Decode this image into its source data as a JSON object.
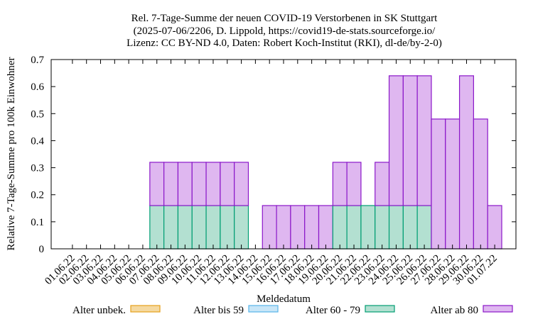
{
  "chart_data": {
    "type": "bar",
    "stacked": true,
    "title_lines": [
      "Rel. 7-Tage-Summe der neuen COVID-19 Verstorbenen in SK Stuttgart",
      "(2025-07-06/2206, D. Lippold, https://covid19-de-stats.sourceforge.io/",
      "Lizenz: CC BY-ND 4.0, Daten: Robert Koch-Institut (RKI), dl-de/by-2-0)"
    ],
    "xlabel": "Meldedatum",
    "ylabel": "Relative 7-Tage-Summe pro 100k Einwohner",
    "ylim": [
      0,
      0.7
    ],
    "yticks": [
      "0",
      "0.1",
      "0.2",
      "0.3",
      "0.4",
      "0.5",
      "0.6",
      "0.7"
    ],
    "grid": false,
    "legend_position": "bottom",
    "categories": [
      "01.06.22",
      "02.06.22",
      "03.06.22",
      "04.06.22",
      "05.06.22",
      "06.06.22",
      "07.06.22",
      "08.06.22",
      "09.06.22",
      "10.06.22",
      "11.06.22",
      "12.06.22",
      "13.06.22",
      "14.06.22",
      "15.06.22",
      "16.06.22",
      "17.06.22",
      "18.06.22",
      "19.06.22",
      "20.06.22",
      "21.06.22",
      "22.06.22",
      "23.06.22",
      "24.06.22",
      "25.06.22",
      "26.06.22",
      "27.06.22",
      "28.06.22",
      "29.06.22",
      "30.06.22",
      "01.07.22"
    ],
    "series": [
      {
        "name": "Alter unbek.",
        "color": "#f5d9a0",
        "stroke": "#e6a11a",
        "values": [
          0,
          0,
          0,
          0,
          0,
          0,
          0,
          0,
          0,
          0,
          0,
          0,
          0,
          0,
          0,
          0,
          0,
          0,
          0,
          0,
          0,
          0,
          0,
          0,
          0,
          0,
          0,
          0,
          0,
          0,
          0
        ]
      },
      {
        "name": "Alter bis 59",
        "color": "#c8e6f8",
        "stroke": "#56b4e9",
        "values": [
          0,
          0,
          0,
          0,
          0,
          0,
          0,
          0,
          0,
          0,
          0,
          0,
          0,
          0,
          0,
          0,
          0,
          0,
          0,
          0,
          0,
          0,
          0,
          0,
          0,
          0,
          0,
          0,
          0,
          0,
          0
        ]
      },
      {
        "name": "Alter 60 - 79",
        "color": "#b3e0d1",
        "stroke": "#009e73",
        "values": [
          0,
          0,
          0,
          0,
          0,
          0,
          0.16,
          0.16,
          0.16,
          0.16,
          0.16,
          0.16,
          0.16,
          0,
          0,
          0,
          0,
          0,
          0,
          0.16,
          0.16,
          0.16,
          0.16,
          0.16,
          0.16,
          0.16,
          0,
          0,
          0,
          0,
          0
        ]
      },
      {
        "name": "Alter ab 80",
        "color": "#dfb7f0",
        "stroke": "#8b17c9",
        "values": [
          0,
          0,
          0,
          0,
          0,
          0,
          0.16,
          0.16,
          0.16,
          0.16,
          0.16,
          0.16,
          0.16,
          0,
          0.16,
          0.16,
          0.16,
          0.16,
          0.16,
          0.16,
          0.16,
          0,
          0.16,
          0.48,
          0.48,
          0.48,
          0.48,
          0.48,
          0.64,
          0.48,
          0.16
        ]
      }
    ]
  }
}
